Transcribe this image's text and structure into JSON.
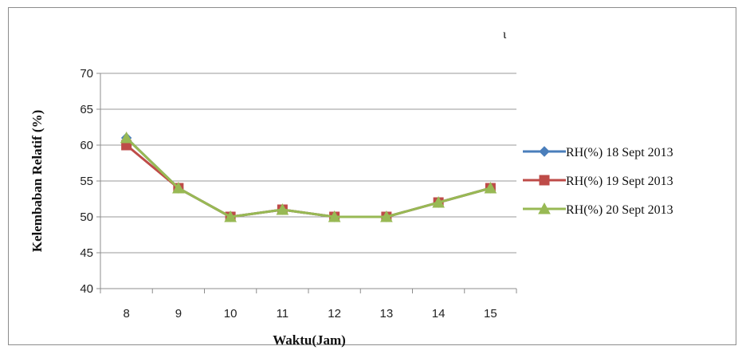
{
  "chart_data": {
    "type": "line",
    "title": "",
    "xlabel": "Waktu(Jam)",
    "ylabel": "Kelembaban Relatif (%)",
    "categories": [
      "8",
      "9",
      "10",
      "11",
      "12",
      "13",
      "14",
      "15"
    ],
    "ylim": [
      40,
      70
    ],
    "yticks": [
      "40",
      "45",
      "50",
      "55",
      "60",
      "65",
      "70"
    ],
    "grid": "horizontal",
    "legend_position": "right",
    "stray_text": "ι",
    "series": [
      {
        "name": "RH(%) 18 Sept 2013",
        "values": [
          61,
          54,
          50,
          51,
          50,
          50,
          52,
          54
        ],
        "color": "#4a7ebb",
        "marker": "diamond"
      },
      {
        "name": "RH(%) 19 Sept 2013",
        "values": [
          60,
          54,
          50,
          51,
          50,
          50,
          52,
          54
        ],
        "color": "#be4b48",
        "marker": "square"
      },
      {
        "name": "RH(%) 20 Sept 2013",
        "values": [
          61,
          54,
          50,
          51,
          50,
          50,
          52,
          54
        ],
        "color": "#98b954",
        "marker": "triangle"
      }
    ]
  }
}
